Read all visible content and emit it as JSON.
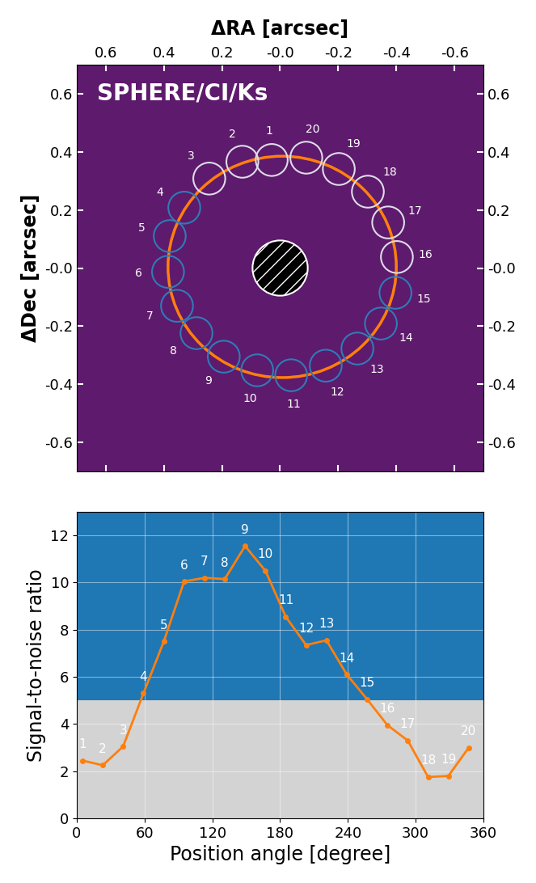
{
  "chart_data": [
    {
      "type": "image",
      "title": "SPHERE/CI/Ks",
      "x_label": "ΔRA [arcsec]",
      "y_label": "ΔDec [arcsec]",
      "xlim": [
        0.7,
        -0.7
      ],
      "ylim": [
        -0.7,
        0.7
      ],
      "xticks": [
        0.6,
        0.4,
        0.2,
        {
          "value": 0.0,
          "label": "-0.0"
        },
        -0.2,
        -0.4,
        -0.6
      ],
      "yticks": [
        0.6,
        0.4,
        0.2,
        {
          "value": 0.0,
          "label": "-0.0"
        },
        -0.2,
        -0.4,
        -0.6
      ],
      "apertures": {
        "labels": [
          "1",
          "2",
          "3",
          "4",
          "5",
          "6",
          "7",
          "8",
          "9",
          "10",
          "11",
          "12",
          "13",
          "14",
          "15",
          "16",
          "17",
          "18",
          "19",
          "20"
        ],
        "ra": [
          0.029,
          0.13,
          0.244,
          0.33,
          0.38,
          0.386,
          0.355,
          0.288,
          0.194,
          0.079,
          -0.038,
          -0.157,
          -0.266,
          -0.347,
          -0.397,
          -0.402,
          -0.372,
          -0.302,
          -0.202,
          -0.09
        ],
        "dec": [
          0.372,
          0.366,
          0.308,
          0.208,
          0.11,
          -0.013,
          -0.13,
          -0.224,
          -0.305,
          -0.352,
          -0.369,
          -0.336,
          -0.277,
          -0.191,
          -0.085,
          0.038,
          0.157,
          0.263,
          0.341,
          0.38
        ],
        "radius": 0.055,
        "colors": [
          "#dcdce8",
          "#dcdce8",
          "#dcdce8",
          "#2f7bb8",
          "#2f7bb8",
          "#2f7bb8",
          "#2f7bb8",
          "#2f7bb8",
          "#2f7bb8",
          "#2f7bb8",
          "#2f7bb8",
          "#2f7bb8",
          "#2f7bb8",
          "#2f7bb8",
          "#2f7bb8",
          "#dcdce8",
          "#dcdce8",
          "#dcdce8",
          "#dcdce8",
          "#dcdce8"
        ]
      },
      "ring": {
        "center": [
          -0.007,
          0.004
        ],
        "width": 0.786,
        "height": 0.762,
        "color": "#ff7f0e"
      },
      "mask": {
        "center": [
          0.0,
          0.0
        ],
        "radius": 0.095
      }
    },
    {
      "type": "line",
      "x_label": "Position angle [degree]",
      "y_label": "Signal-to-noise ratio",
      "x": [
        5,
        23,
        41,
        59,
        77,
        95,
        113,
        131,
        149,
        167,
        185,
        203,
        221,
        239,
        257,
        275,
        293,
        311,
        329,
        347
      ],
      "values": [
        2.45,
        2.25,
        3.05,
        5.3,
        7.5,
        10.05,
        10.2,
        10.15,
        11.55,
        10.5,
        8.55,
        7.35,
        7.55,
        6.1,
        5.05,
        3.95,
        3.3,
        1.75,
        1.8,
        3.0
      ],
      "point_labels": [
        "1",
        "2",
        "3",
        "4",
        "5",
        "6",
        "7",
        "8",
        "9",
        "10",
        "11",
        "12",
        "13",
        "14",
        "15",
        "16",
        "17",
        "18",
        "19",
        "20"
      ],
      "color": "#ff7f0e",
      "marker": "o",
      "line_style": "solid",
      "detection_threshold": 5,
      "colors": [
        "#d3d3d3",
        "#1f77b4"
      ],
      "xlim": [
        0,
        360
      ],
      "ylim": [
        0,
        13
      ],
      "xticks": [
        0,
        60,
        120,
        180,
        240,
        300,
        360
      ],
      "yticks": [
        0,
        2,
        4,
        6,
        8,
        10,
        12
      ],
      "grid": true
    }
  ]
}
